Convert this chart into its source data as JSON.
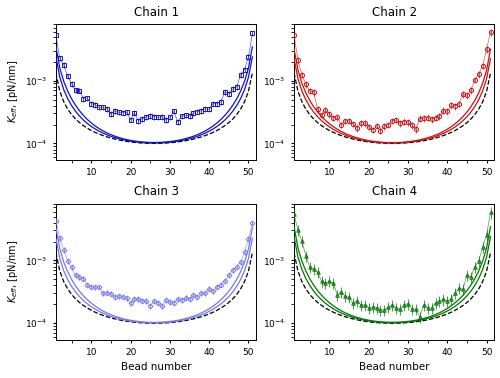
{
  "titles": [
    "Chain 1",
    "Chain 2",
    "Chain 3",
    "Chain 4"
  ],
  "colors": [
    "#1111CC",
    "#CC1111",
    "#7777EE",
    "#007700"
  ],
  "light_colors": [
    "#8888EE",
    "#EE8888",
    "#BBBBFF",
    "#88CC88"
  ],
  "xlabel": "Bead number",
  "ylabel_left": "K_eff, [pN/nm]",
  "ylim": [
    5.5e-05,
    0.008
  ],
  "xlim": [
    1,
    52
  ],
  "n_beads": 51,
  "background": "#ffffff",
  "rouse_k": 0.32,
  "wall_k1": 0.85,
  "wall_k2": 1.4
}
